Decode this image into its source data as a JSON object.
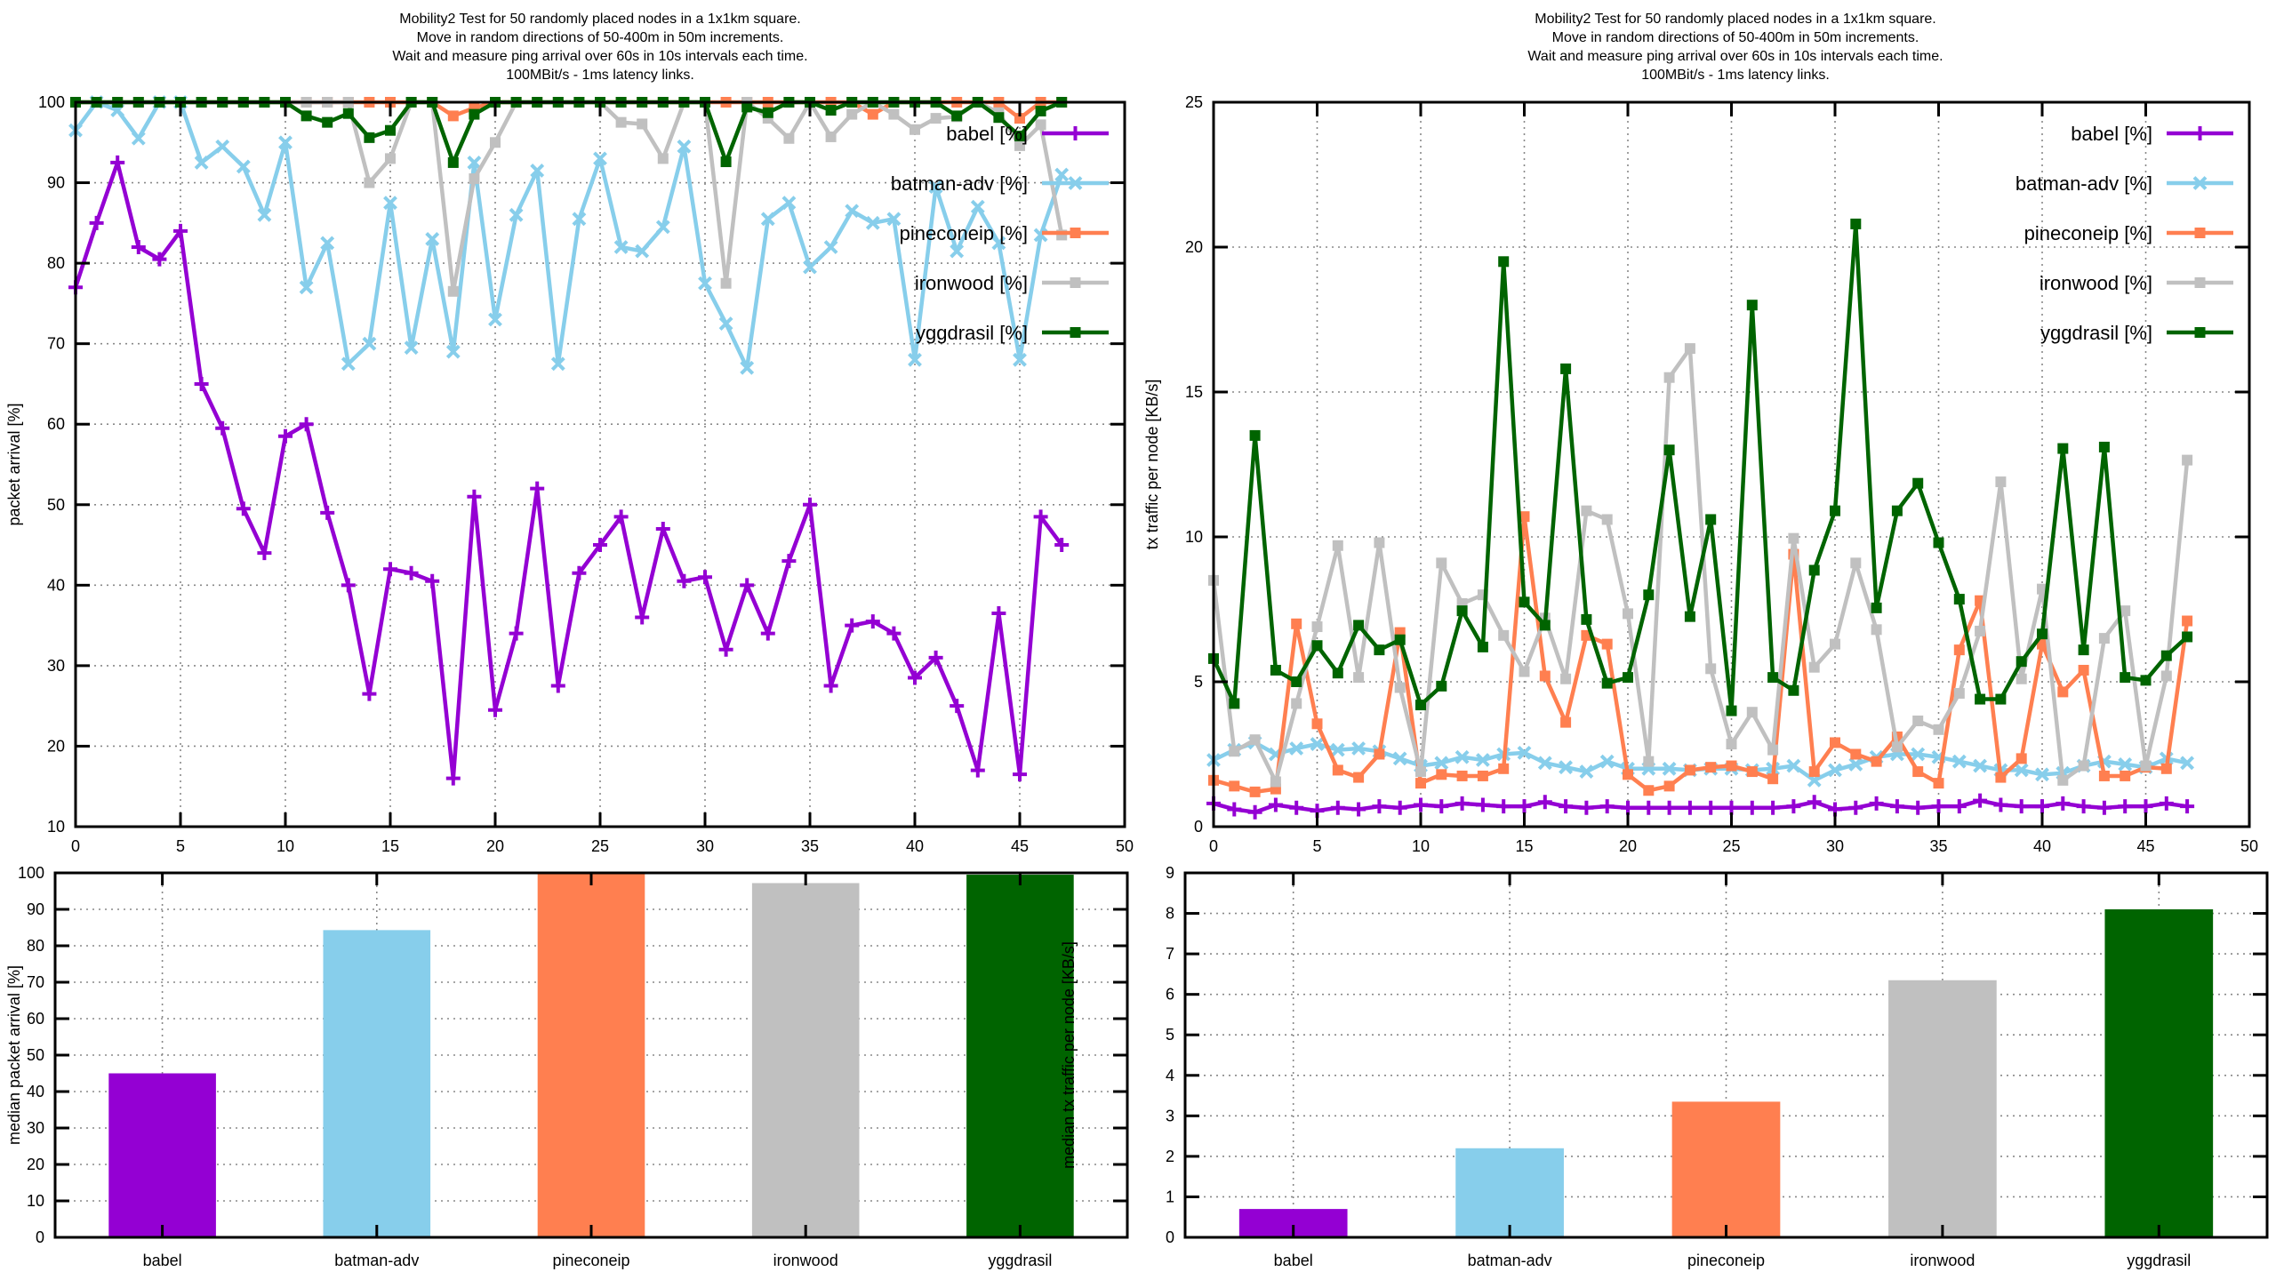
{
  "figure": {
    "background": "#ffffff",
    "title_lines": [
      "Mobility2 Test for 50 randomly placed nodes in a 1x1km square.",
      "Move in random directions of 50-400m in 50m increments.",
      "Wait and measure ping arrival over 60s in 10s intervals each time.",
      "100MBit/s - 1ms latency links."
    ]
  },
  "colors": {
    "babel": "#9400D3",
    "batman-adv": "#87CEEB",
    "pineconeip": "#FF7F50",
    "ironwood": "#C0C0C0",
    "yggdrasil": "#006400",
    "axis": "#000000",
    "grid": "#888888"
  },
  "chart_data": [
    {
      "id": "packet-arrival-line",
      "type": "line",
      "title_lines": [
        "Mobility2 Test for 50 randomly placed nodes in a 1x1km square.",
        "Move in random directions of 50-400m in 50m increments.",
        "Wait and measure ping arrival over 60s in 10s intervals each time.",
        "100MBit/s - 1ms latency links."
      ],
      "xlabel": "",
      "ylabel": "packet arrival [%]",
      "xlim": [
        0,
        50
      ],
      "ylim": [
        10,
        100
      ],
      "xticks": [
        0,
        5,
        10,
        15,
        20,
        25,
        30,
        35,
        40,
        45,
        50
      ],
      "yticks": [
        10,
        20,
        30,
        40,
        50,
        60,
        70,
        80,
        90,
        100
      ],
      "grid": true,
      "legend_position": "top-right-inside",
      "series": [
        {
          "name": "babel",
          "label": "babel [%]",
          "color": "#9400D3",
          "marker": "plus",
          "values": [
            77,
            85,
            92.5,
            82,
            80.5,
            84,
            65,
            59.5,
            49.5,
            44,
            58.5,
            60,
            49,
            40,
            26.5,
            42,
            41.5,
            40.5,
            16,
            51,
            24.5,
            34,
            52,
            27.5,
            41.5,
            45,
            48.5,
            36,
            47,
            40.5,
            41,
            32,
            40,
            34,
            43,
            50,
            27.5,
            35,
            35.5,
            34,
            28.5,
            31,
            25,
            17,
            36.5,
            16.5,
            48.5,
            45
          ]
        },
        {
          "name": "batman-adv",
          "label": "batman-adv [%]",
          "color": "#87CEEB",
          "marker": "cross",
          "values": [
            96.5,
            100,
            99,
            95.5,
            100,
            100,
            92.5,
            94.5,
            92,
            86,
            95,
            77,
            82.5,
            67.5,
            70,
            87.5,
            69.5,
            83,
            69,
            92.5,
            73,
            86,
            91.5,
            67.5,
            85.5,
            93,
            82,
            81.5,
            84.5,
            94.5,
            77.5,
            72.5,
            67,
            85.5,
            87.5,
            79.5,
            82,
            86.5,
            85,
            85.5,
            68,
            89.5,
            81.5,
            87,
            82.5,
            68,
            83.5,
            91
          ]
        },
        {
          "name": "pineconeip",
          "label": "pineconeip [%]",
          "color": "#FF7F50",
          "marker": "square",
          "values": [
            100,
            100,
            100,
            100,
            100,
            100,
            100,
            100,
            100,
            100,
            100,
            100,
            100,
            100,
            100,
            100,
            100,
            100,
            98.3,
            99.3,
            100,
            100,
            100,
            100,
            100,
            100,
            100,
            100,
            100,
            100,
            100,
            100,
            100,
            100,
            100,
            100,
            100,
            100,
            98.5,
            100,
            100,
            100,
            100,
            100,
            100,
            98,
            100,
            100
          ]
        },
        {
          "name": "ironwood",
          "label": "ironwood [%]",
          "color": "#C0C0C0",
          "marker": "square",
          "values": [
            100,
            100,
            100,
            100,
            100,
            100,
            100,
            100,
            100,
            100,
            100,
            100,
            100,
            100,
            90,
            93,
            100,
            100,
            76.5,
            90.5,
            95,
            100,
            100,
            100,
            100,
            100,
            97.5,
            97.3,
            93,
            100,
            100,
            77.5,
            100,
            98,
            95.5,
            100,
            95.7,
            98.5,
            100,
            98.5,
            96.6,
            98,
            98.2,
            100,
            98.7,
            94.6,
            97.2,
            83.5
          ]
        },
        {
          "name": "yggdrasil",
          "label": "yggdrasil [%]",
          "color": "#006400",
          "marker": "square",
          "values": [
            100,
            100,
            100,
            100,
            100,
            100,
            100,
            100,
            100,
            100,
            100,
            98.3,
            97.5,
            98.6,
            95.6,
            96.5,
            100,
            100,
            92.5,
            98.5,
            100,
            100,
            100,
            100,
            100,
            100,
            100,
            100,
            100,
            100,
            100,
            92.6,
            99.4,
            98.7,
            100,
            100,
            99,
            100,
            100,
            100,
            100,
            100,
            98.3,
            100,
            98.1,
            95.8,
            98.9,
            100
          ]
        }
      ]
    },
    {
      "id": "tx-traffic-line",
      "type": "line",
      "title_lines": [
        "Mobility2 Test for 50 randomly placed nodes in a 1x1km square.",
        "Move in random directions of 50-400m in 50m increments.",
        "Wait and measure ping arrival over 60s in 10s intervals each time.",
        "100MBit/s - 1ms latency links."
      ],
      "xlabel": "",
      "ylabel": "tx traffic per node [KB/s]",
      "xlim": [
        0,
        50
      ],
      "ylim": [
        0,
        25
      ],
      "xticks": [
        0,
        5,
        10,
        15,
        20,
        25,
        30,
        35,
        40,
        45,
        50
      ],
      "yticks": [
        0,
        5,
        10,
        15,
        20,
        25
      ],
      "grid": true,
      "legend_position": "top-right-inside",
      "series": [
        {
          "name": "babel",
          "label": "babel [%]",
          "color": "#9400D3",
          "marker": "plus",
          "values": [
            0.8,
            0.6,
            0.5,
            0.75,
            0.65,
            0.55,
            0.65,
            0.6,
            0.7,
            0.65,
            0.75,
            0.7,
            0.8,
            0.75,
            0.7,
            0.7,
            0.85,
            0.7,
            0.65,
            0.7,
            0.65,
            0.65,
            0.65,
            0.65,
            0.65,
            0.65,
            0.65,
            0.65,
            0.7,
            0.85,
            0.6,
            0.65,
            0.8,
            0.7,
            0.65,
            0.7,
            0.7,
            0.9,
            0.75,
            0.7,
            0.7,
            0.8,
            0.7,
            0.65,
            0.7,
            0.7,
            0.8,
            0.7
          ]
        },
        {
          "name": "batman-adv",
          "label": "batman-adv [%]",
          "color": "#87CEEB",
          "marker": "cross",
          "values": [
            2.3,
            2.65,
            2.9,
            2.5,
            2.7,
            2.85,
            2.65,
            2.7,
            2.6,
            2.35,
            2.1,
            2.2,
            2.4,
            2.3,
            2.5,
            2.55,
            2.2,
            2.05,
            1.9,
            2.25,
            2.0,
            2.0,
            2.0,
            1.95,
            2.0,
            2.0,
            1.95,
            2.0,
            2.1,
            1.6,
            1.95,
            2.15,
            2.4,
            2.5,
            2.5,
            2.4,
            2.25,
            2.1,
            1.95,
            1.95,
            1.8,
            1.85,
            2.1,
            2.25,
            2.15,
            2.05,
            2.35,
            2.2
          ]
        },
        {
          "name": "pineconeip",
          "label": "pineconeip [%]",
          "color": "#FF7F50",
          "marker": "square",
          "values": [
            1.6,
            1.4,
            1.2,
            1.3,
            7.0,
            3.55,
            1.95,
            1.7,
            2.5,
            6.7,
            1.5,
            1.8,
            1.75,
            1.75,
            2.0,
            10.7,
            5.2,
            3.6,
            6.6,
            6.3,
            1.8,
            1.25,
            1.4,
            1.95,
            2.05,
            2.1,
            1.9,
            1.65,
            9.4,
            1.9,
            2.9,
            2.5,
            2.25,
            3.1,
            1.9,
            1.5,
            6.1,
            7.8,
            1.7,
            2.35,
            6.3,
            4.65,
            5.4,
            1.75,
            1.75,
            2.05,
            2.0,
            7.1
          ]
        },
        {
          "name": "ironwood",
          "label": "ironwood [%]",
          "color": "#C0C0C0",
          "marker": "square",
          "values": [
            8.5,
            2.6,
            3.0,
            1.55,
            4.25,
            6.9,
            9.7,
            5.15,
            9.8,
            4.8,
            1.9,
            9.1,
            7.7,
            8.0,
            6.6,
            5.35,
            7.2,
            5.1,
            10.9,
            10.6,
            7.35,
            2.25,
            15.5,
            16.5,
            5.45,
            2.85,
            3.95,
            2.65,
            9.95,
            5.5,
            6.3,
            9.1,
            6.8,
            2.75,
            3.65,
            3.35,
            4.6,
            6.75,
            11.9,
            5.1,
            8.2,
            1.6,
            2.1,
            6.5,
            7.45,
            2.1,
            5.2,
            12.65
          ]
        },
        {
          "name": "yggdrasil",
          "label": "yggdrasil [%]",
          "color": "#006400",
          "marker": "square",
          "values": [
            5.8,
            4.25,
            13.5,
            5.4,
            5.0,
            6.25,
            5.3,
            6.95,
            6.1,
            6.45,
            4.2,
            4.85,
            7.45,
            6.2,
            19.5,
            7.75,
            6.95,
            15.8,
            7.15,
            4.95,
            5.15,
            8.0,
            13.0,
            7.25,
            10.6,
            4.0,
            18.0,
            5.15,
            4.7,
            8.85,
            10.9,
            20.8,
            7.55,
            10.9,
            11.85,
            9.8,
            7.85,
            4.4,
            4.4,
            5.7,
            6.65,
            13.05,
            6.1,
            13.1,
            5.15,
            5.05,
            5.9,
            6.55
          ]
        }
      ]
    },
    {
      "id": "median-packet-arrival-bar",
      "type": "bar",
      "title_lines": [],
      "xlabel": "",
      "ylabel": "median packet arrival [%]",
      "ylim": [
        0,
        100
      ],
      "yticks": [
        0,
        10,
        20,
        30,
        40,
        50,
        60,
        70,
        80,
        90,
        100
      ],
      "grid": true,
      "categories": [
        "babel",
        "batman-adv",
        "pineconeip",
        "ironwood",
        "yggdrasil"
      ],
      "values": [
        45,
        84.3,
        100,
        97.2,
        99.5
      ],
      "bar_colors": [
        "#9400D3",
        "#87CEEB",
        "#FF7F50",
        "#C0C0C0",
        "#006400"
      ]
    },
    {
      "id": "median-tx-traffic-bar",
      "type": "bar",
      "title_lines": [],
      "xlabel": "",
      "ylabel": "median tx traffic per node [KB/s]",
      "ylim": [
        0,
        9
      ],
      "yticks": [
        0,
        1,
        2,
        3,
        4,
        5,
        6,
        7,
        8,
        9
      ],
      "grid": true,
      "categories": [
        "babel",
        "batman-adv",
        "pineconeip",
        "ironwood",
        "yggdrasil"
      ],
      "values": [
        0.7,
        2.2,
        3.35,
        6.35,
        8.1
      ],
      "bar_colors": [
        "#9400D3",
        "#87CEEB",
        "#FF7F50",
        "#C0C0C0",
        "#006400"
      ]
    }
  ]
}
